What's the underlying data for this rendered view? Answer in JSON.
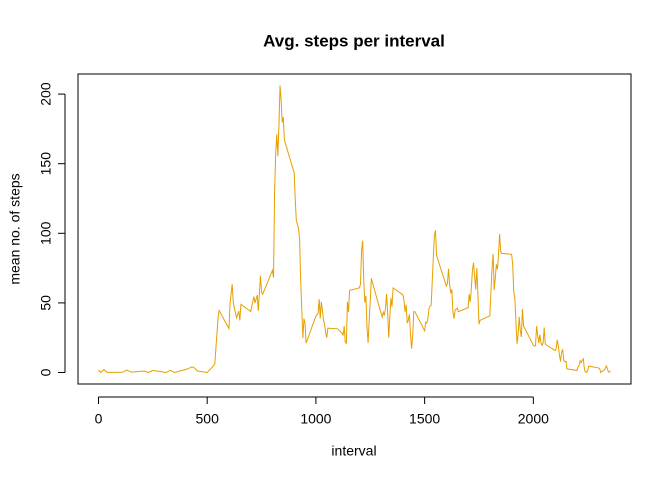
{
  "chart_data": {
    "type": "line",
    "title": "Avg. steps per interval",
    "x_label": "interval",
    "y_label": "mean no. of steps",
    "color": "#e69f00",
    "x": [
      0,
      10,
      25,
      40,
      55,
      110,
      130,
      150,
      210,
      230,
      250,
      310,
      330,
      350,
      410,
      430,
      440,
      455,
      500,
      520,
      535,
      550,
      555,
      600,
      605,
      615,
      620,
      635,
      645,
      650,
      655,
      700,
      715,
      720,
      730,
      735,
      745,
      750,
      755,
      800,
      805,
      810,
      815,
      820,
      825,
      830,
      835,
      840,
      845,
      850,
      855,
      900,
      905,
      910,
      920,
      925,
      930,
      935,
      940,
      945,
      950,
      955,
      1000,
      1010,
      1015,
      1020,
      1025,
      1030,
      1035,
      1040,
      1045,
      1050,
      1055,
      1100,
      1110,
      1120,
      1125,
      1130,
      1135,
      1140,
      1145,
      1150,
      1155,
      1200,
      1205,
      1210,
      1215,
      1220,
      1225,
      1230,
      1235,
      1240,
      1245,
      1250,
      1255,
      1300,
      1305,
      1310,
      1315,
      1320,
      1325,
      1330,
      1335,
      1340,
      1345,
      1350,
      1355,
      1400,
      1405,
      1410,
      1415,
      1420,
      1425,
      1430,
      1435,
      1440,
      1445,
      1450,
      1455,
      1500,
      1505,
      1510,
      1515,
      1520,
      1525,
      1530,
      1535,
      1540,
      1545,
      1550,
      1555,
      1600,
      1605,
      1610,
      1615,
      1620,
      1625,
      1630,
      1635,
      1640,
      1645,
      1650,
      1655,
      1700,
      1705,
      1710,
      1715,
      1720,
      1725,
      1730,
      1735,
      1740,
      1745,
      1750,
      1755,
      1800,
      1805,
      1810,
      1815,
      1820,
      1825,
      1830,
      1835,
      1840,
      1845,
      1850,
      1855,
      1900,
      1905,
      1910,
      1915,
      1920,
      1925,
      1930,
      1935,
      1940,
      1945,
      1950,
      1955,
      2000,
      2005,
      2010,
      2015,
      2020,
      2025,
      2030,
      2035,
      2040,
      2045,
      2050,
      2055,
      2100,
      2105,
      2110,
      2115,
      2120,
      2125,
      2130,
      2135,
      2140,
      2145,
      2150,
      2155,
      2200,
      2205,
      2210,
      2215,
      2220,
      2225,
      2230,
      2235,
      2240,
      2245,
      2250,
      2255,
      2300,
      2305,
      2310,
      2315,
      2320,
      2325,
      2330,
      2335,
      2340,
      2345,
      2350,
      2355
    ],
    "values": [
      1.7,
      0.1,
      2.1,
      0,
      0.1,
      0.2,
      1.8,
      0.3,
      1.1,
      0,
      1.5,
      0,
      1.6,
      0,
      2.6,
      4.1,
      3.5,
      1.1,
      0,
      3.3,
      6.1,
      39.5,
      44.5,
      31.5,
      49.3,
      63.5,
      50,
      39.3,
      44.2,
      37.4,
      49,
      43.8,
      54.5,
      49.9,
      55.7,
      44.3,
      69.5,
      57.8,
      56.2,
      73.4,
      68.2,
      129.4,
      157.5,
      171.2,
      155.4,
      177.3,
      206.2,
      195.9,
      179.6,
      183.4,
      167,
      143.5,
      124,
      109.1,
      103.7,
      96,
      66.2,
      45.2,
      24.8,
      38.8,
      35,
      21.1,
      40.6,
      42.4,
      52.7,
      38.9,
      50.8,
      44.3,
      37.4,
      34.7,
      28.3,
      25.1,
      31.9,
      31.4,
      29.7,
      28.4,
      26.5,
      33.4,
      22,
      21,
      50.8,
      43.5,
      59,
      60.8,
      63.5,
      87.5,
      94.8,
      66.3,
      50.2,
      55,
      32.6,
      21.3,
      37.3,
      51.5,
      67.6,
      42.3,
      39.9,
      43.3,
      41,
      46.2,
      56.4,
      42.8,
      25.1,
      40,
      53.5,
      47.3,
      60.8,
      55.8,
      52,
      43.6,
      48.7,
      35.5,
      37.5,
      41.8,
      27.5,
      17.1,
      26.1,
      43.6,
      43.8,
      30,
      36.1,
      35.5,
      38.8,
      46,
      47.8,
      48.1,
      65.3,
      82.9,
      98.7,
      102.1,
      84,
      62.1,
      64.1,
      74.5,
      63.2,
      56.9,
      59.8,
      43.9,
      38.6,
      44.7,
      45.5,
      46.2,
      43.7,
      46.6,
      56.3,
      50.7,
      61.2,
      73.4,
      79,
      68.9,
      59.7,
      75.1,
      56.5,
      34.8,
      37.5,
      40.7,
      58,
      74.7,
      85.3,
      59.3,
      67.8,
      77.7,
      74.2,
      85.3,
      99.5,
      86.6,
      85.6,
      84.9,
      77.8,
      58,
      53.4,
      36.3,
      20.7,
      27.4,
      40,
      30.2,
      25.5,
      45.7,
      33.5,
      19.6,
      19,
      19.3,
      33.3,
      26.8,
      21.2,
      27.3,
      21.3,
      19.5,
      21.3,
      32.3,
      20.2,
      15.9,
      17.2,
      23.5,
      19.2,
      12.5,
      8,
      14.7,
      16.3,
      8.7,
      7.8,
      8.1,
      2.6,
      1.5,
      3.7,
      4.8,
      8.5,
      7.1,
      8.7,
      9.8,
      2.2,
      0.3,
      0.1,
      1.6,
      4.6,
      3.3,
      2.8,
      0,
      0.8,
      1,
      1.6,
      2.6,
      4.7,
      3.3,
      0.6,
      0.2,
      1.1
    ],
    "xlim": [
      -94.2,
      2449.2
    ],
    "ylim": [
      -8.25,
      214.42
    ],
    "xticks": [
      0,
      500,
      1000,
      1500,
      2000
    ],
    "yticks": [
      0,
      50,
      100,
      150,
      200
    ]
  }
}
